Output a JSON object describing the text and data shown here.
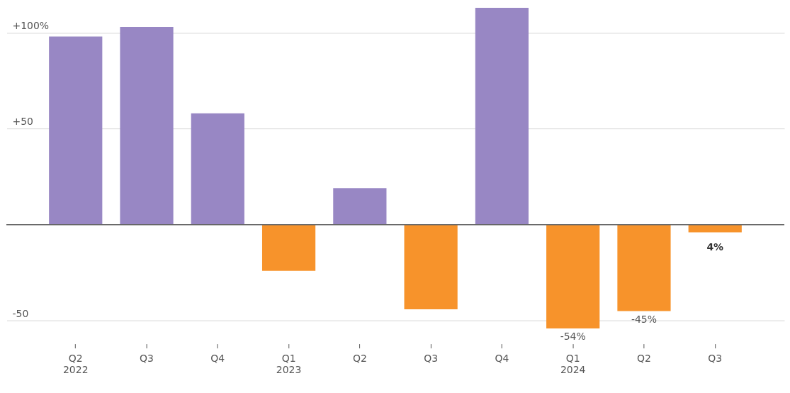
{
  "chart_data": {
    "type": "bar",
    "categories": [
      "Q2\n2022",
      "Q3",
      "Q4",
      "Q1\n2023",
      "Q2",
      "Q3",
      "Q4",
      "Q1\n2024",
      "Q2",
      "Q3"
    ],
    "values": [
      98,
      103,
      58,
      -24,
      19,
      -44,
      113,
      -54,
      -45,
      -4
    ],
    "colors": [
      "#9887c4",
      "#9887c4",
      "#9887c4",
      "#f7932b",
      "#9887c4",
      "#f7932b",
      "#9887c4",
      "#f7932b",
      "#f7932b",
      "#f7932b"
    ],
    "value_labels": [
      null,
      null,
      null,
      null,
      null,
      null,
      null,
      "-54%",
      "-45%",
      null
    ],
    "annotations": [
      "4%"
    ],
    "ylim": [
      -62,
      115
    ],
    "yticks": [
      {
        "value": 100,
        "label": "+100%"
      },
      {
        "value": 50,
        "label": "+50"
      },
      {
        "value": -50,
        "label": "-50"
      }
    ],
    "ref_lines": [
      {
        "axis": "y",
        "value": 0,
        "color": "#666666"
      }
    ],
    "grid": "y"
  }
}
